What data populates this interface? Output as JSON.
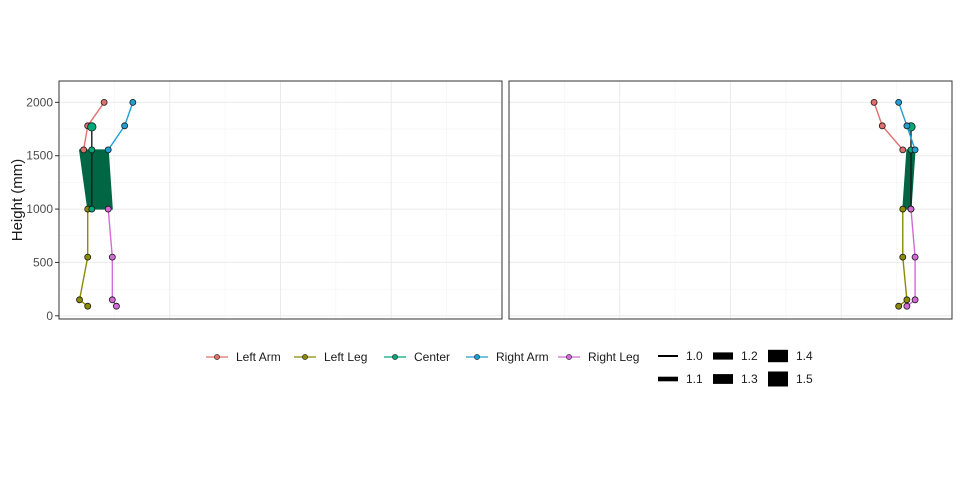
{
  "chart_data": {
    "type": "line",
    "ylabel": "Height (mm)",
    "ylim": [
      -30,
      2200
    ],
    "y_ticks": [
      0,
      500,
      1000,
      1500,
      2000
    ],
    "grid": true,
    "legend_position": "bottom",
    "colors": {
      "Left Arm": "#e0706b",
      "Left Leg": "#8c8a00",
      "Center": "#00a87a",
      "Right Arm": "#1e9fd6",
      "Right Leg": "#d36ad6",
      "torso_fill": "#006644"
    },
    "panels": [
      {
        "name": "left-panel",
        "x_range": [
          -30,
          1050
        ],
        "series": [
          {
            "name": "Left Arm",
            "points": [
              [
                80,
                2000
              ],
              [
                40,
                1780
              ],
              [
                30,
                1555
              ]
            ]
          },
          {
            "name": "Left Leg",
            "points": [
              [
                40,
                1000
              ],
              [
                40,
                550
              ],
              [
                20,
                150
              ],
              [
                40,
                90
              ]
            ]
          },
          {
            "name": "Center",
            "points": [
              [
                50,
                1770
              ],
              [
                50,
                1555
              ],
              [
                50,
                1000
              ]
            ]
          },
          {
            "name": "Right Arm",
            "points": [
              [
                150,
                2000
              ],
              [
                130,
                1780
              ],
              [
                90,
                1555
              ]
            ]
          },
          {
            "name": "Right Leg",
            "points": [
              [
                90,
                1000
              ],
              [
                100,
                550
              ],
              [
                100,
                150
              ],
              [
                110,
                90
              ]
            ]
          }
        ],
        "torso": [
          [
            20,
            1555
          ],
          [
            90,
            1555
          ],
          [
            100,
            1000
          ],
          [
            40,
            1000
          ]
        ]
      },
      {
        "name": "right-panel",
        "x_range": [
          -30,
          1050
        ],
        "series": [
          {
            "name": "Left Arm",
            "points": [
              [
                860,
                2000
              ],
              [
                880,
                1780
              ],
              [
                930,
                1555
              ]
            ]
          },
          {
            "name": "Left Leg",
            "points": [
              [
                930,
                1000
              ],
              [
                930,
                550
              ],
              [
                940,
                150
              ],
              [
                920,
                90
              ]
            ]
          },
          {
            "name": "Center",
            "points": [
              [
                950,
                1770
              ],
              [
                950,
                1555
              ],
              [
                950,
                1000
              ]
            ]
          },
          {
            "name": "Right Arm",
            "points": [
              [
                920,
                2000
              ],
              [
                940,
                1780
              ],
              [
                960,
                1555
              ]
            ]
          },
          {
            "name": "Right Leg",
            "points": [
              [
                950,
                1000
              ],
              [
                960,
                550
              ],
              [
                960,
                150
              ],
              [
                940,
                90
              ]
            ]
          }
        ],
        "torso": [
          [
            940,
            1555
          ],
          [
            960,
            1555
          ],
          [
            950,
            1000
          ],
          [
            930,
            1000
          ]
        ]
      }
    ],
    "legend": {
      "color_entries": [
        "Left Arm",
        "Left Leg",
        "Center",
        "Right Arm",
        "Right Leg"
      ],
      "size_entries": [
        {
          "label": "1.0",
          "value": 1.0
        },
        {
          "label": "1.1",
          "value": 1.1
        },
        {
          "label": "1.2",
          "value": 1.2
        },
        {
          "label": "1.3",
          "value": 1.3
        },
        {
          "label": "1.4",
          "value": 1.4
        },
        {
          "label": "1.5",
          "value": 1.5
        }
      ]
    }
  }
}
